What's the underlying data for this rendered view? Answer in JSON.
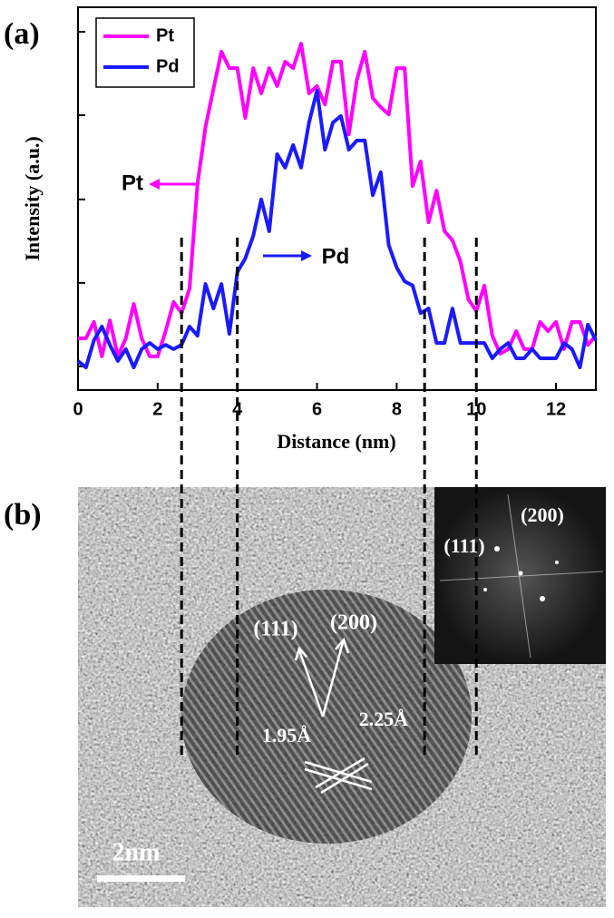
{
  "chart_data": {
    "type": "line",
    "panel_label": "(a)",
    "xlabel": "Distance (nm)",
    "ylabel": "Intensity (a.u.)",
    "x": [
      0,
      0.2,
      0.4,
      0.6,
      0.8,
      1,
      1.2,
      1.4,
      1.6,
      1.8,
      2,
      2.2,
      2.4,
      2.6,
      2.8,
      3,
      3.2,
      3.4,
      3.6,
      3.8,
      4,
      4.2,
      4.4,
      4.6,
      4.8,
      5,
      5.2,
      5.4,
      5.6,
      5.8,
      6,
      6.2,
      6.4,
      6.6,
      6.8,
      7,
      7.2,
      7.4,
      7.6,
      7.8,
      8,
      8.2,
      8.4,
      8.6,
      8.8,
      9,
      9.2,
      9.4,
      9.6,
      9.8,
      10,
      10.2,
      10.4,
      10.6,
      10.8,
      11,
      11.2,
      11.4,
      11.6,
      11.8,
      12,
      12.2,
      12.4,
      12.6,
      12.8,
      13
    ],
    "series": [
      {
        "name": "Pt",
        "color": "#ff00ff",
        "values": [
          13.5,
          13.5,
          17.8,
          8.8,
          18.2,
          8.8,
          13.5,
          22.5,
          13.5,
          8.8,
          8.8,
          15.4,
          23,
          20.1,
          26.5,
          53.8,
          68.7,
          78.7,
          88.4,
          84.1,
          84.1,
          71.1,
          84.1,
          77.5,
          84.1,
          79.4,
          85.8,
          84.1,
          90.5,
          77.5,
          79.4,
          74.6,
          85.8,
          85.8,
          66.8,
          81,
          88.4,
          76.3,
          73.9,
          72,
          84.1,
          84.1,
          53.3,
          59.7,
          43.8,
          52.1,
          41.5,
          39.1,
          33.6,
          23.7,
          20.6,
          27.3,
          14.2,
          9.5,
          10.7,
          15.4,
          10.7,
          10.7,
          17.8,
          15.4,
          17.8,
          10.7,
          17.8,
          17.8,
          11.8,
          14.2
        ]
      },
      {
        "name": "Pd",
        "color": "#1a1aff",
        "values": [
          7.6,
          5.9,
          13,
          16.6,
          11.8,
          7.6,
          10.7,
          5.9,
          10.7,
          12.3,
          10.7,
          11.8,
          10.7,
          11.8,
          16.6,
          14.2,
          27.7,
          21.3,
          27.7,
          14.7,
          30.8,
          34.4,
          40.3,
          49.8,
          41.5,
          61.6,
          58.1,
          64,
          58.1,
          69.9,
          78.2,
          62.8,
          69.9,
          71.6,
          62.8,
          65.2,
          65.2,
          50.9,
          56.9,
          37.9,
          32,
          28.4,
          27.3,
          20.1,
          21.3,
          12.3,
          12.3,
          21.3,
          12.3,
          12.3,
          12.3,
          12.3,
          8.3,
          10.7,
          12.3,
          8.3,
          8.3,
          10.7,
          8.3,
          8.3,
          8.3,
          12.3,
          10.7,
          5.9,
          17.1,
          13
        ]
      }
    ],
    "xlim": [
      0,
      13
    ],
    "xticks": [
      0,
      2,
      4,
      6,
      8,
      10,
      12
    ],
    "ylim": [
      0,
      100
    ],
    "yticks": [
      6.2,
      28,
      49.8,
      71.8,
      93.6
    ],
    "legend": "upper left",
    "vlines": [
      2.6,
      4,
      8.7,
      10
    ],
    "annotations": [
      "Pt",
      "Pd"
    ]
  },
  "image": {
    "panel_label": "(b)",
    "fft_labels": [
      "(111)",
      "(200)"
    ],
    "lattice_labels": [
      "(111)",
      "(200)"
    ],
    "spacings": [
      "1.95Å",
      "2.25Å"
    ],
    "scale_bar": "2nm"
  }
}
